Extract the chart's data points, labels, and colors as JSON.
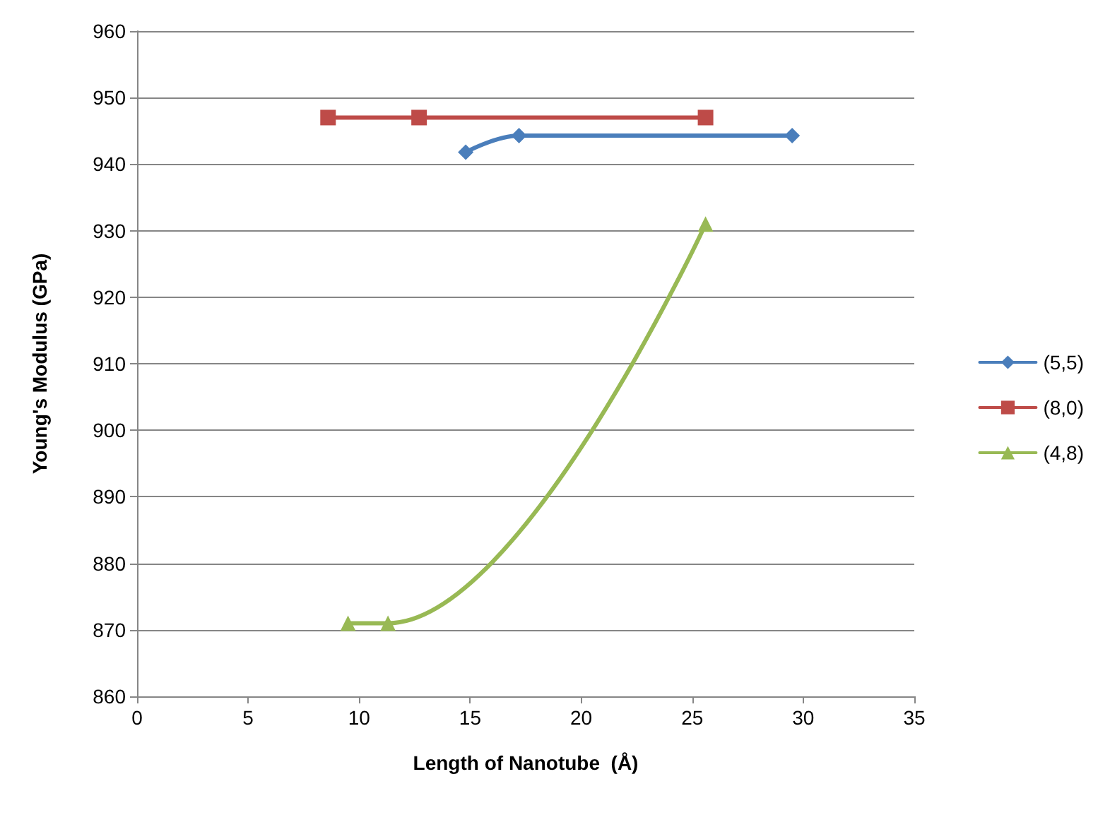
{
  "chart_data": {
    "type": "line",
    "xlabel": "Length of Nanotube  (Å)",
    "ylabel": "Young's Modulus (GPa)",
    "xlim": [
      0,
      35
    ],
    "xticks": [
      0,
      5,
      10,
      15,
      20,
      25,
      30,
      35
    ],
    "ylim": [
      860,
      960
    ],
    "yticks": [
      860,
      870,
      880,
      890,
      900,
      910,
      920,
      930,
      940,
      950,
      960
    ],
    "grid": "y",
    "legend": "right",
    "line_style": "solid",
    "series": [
      {
        "name": "(5,5)",
        "color": "#4a7ebb",
        "marker": "diamond",
        "x": [
          14.8,
          17.2,
          29.5
        ],
        "values": [
          941.8,
          944.3,
          944.3
        ]
      },
      {
        "name": "(8,0)",
        "color": "#be4b48",
        "marker": "square",
        "x": [
          8.6,
          12.7,
          25.6
        ],
        "values": [
          947,
          947,
          947
        ]
      },
      {
        "name": "(4,8)",
        "color": "#98b954",
        "marker": "triangle",
        "x": [
          9.5,
          11.3,
          25.6
        ],
        "values": [
          871,
          871,
          931
        ]
      }
    ]
  }
}
